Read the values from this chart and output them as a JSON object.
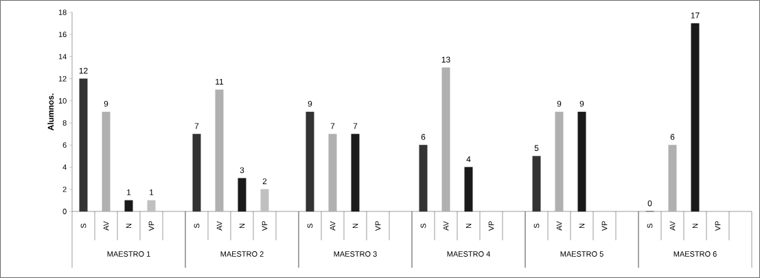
{
  "chart_data": {
    "type": "bar",
    "ylabel": "Alumnos.",
    "categories": [
      "MAESTRO 1",
      "MAESTRO 2",
      "MAESTRO 3",
      "MAESTRO 4",
      "MAESTRO 5",
      "MAESTRO 6"
    ],
    "series": [
      {
        "name": "S",
        "color": "#333333",
        "values": [
          12,
          7,
          9,
          6,
          5,
          0
        ]
      },
      {
        "name": "AV",
        "color": "#b0b0b0",
        "values": [
          9,
          11,
          7,
          13,
          9,
          6
        ]
      },
      {
        "name": "N",
        "color": "#1a1a1a",
        "values": [
          1,
          3,
          7,
          4,
          9,
          17
        ]
      },
      {
        "name": "VP",
        "color": "#c0c0c0",
        "values": [
          1,
          2,
          null,
          null,
          null,
          null
        ]
      }
    ],
    "ylim": [
      0,
      18
    ],
    "yticks": [
      0,
      2,
      4,
      6,
      8,
      10,
      12,
      14,
      16,
      18
    ],
    "data_labels": true
  }
}
